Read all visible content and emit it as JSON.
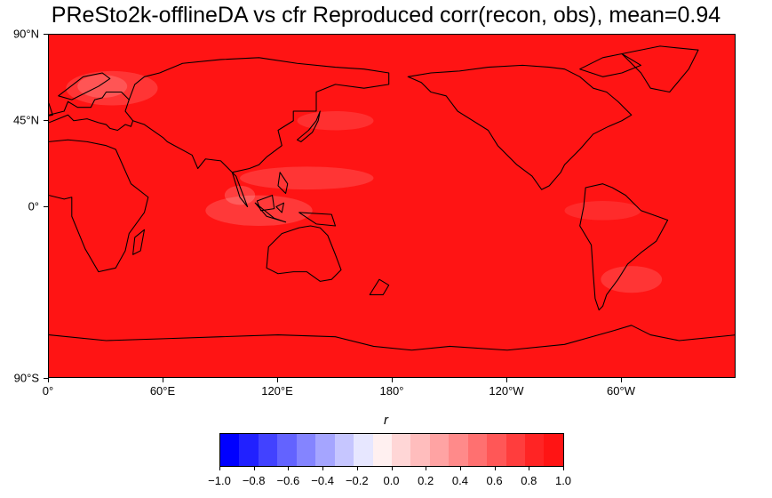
{
  "title": "PReSto2k-offlineDA vs cfr Reproduced corr(recon, obs), mean=0.94",
  "map": {
    "projection": "equirectangular",
    "central_longitude": 180,
    "background_color": "#ff1414",
    "coastline_color": "#000000",
    "lat_ticks": [
      {
        "label": "90°N",
        "lat": 90
      },
      {
        "label": "45°N",
        "lat": 45
      },
      {
        "label": "0°",
        "lat": 0
      },
      {
        "label": "90°S",
        "lat": -90
      }
    ],
    "lon_ticks": [
      {
        "label": "0°",
        "lon": 0
      },
      {
        "label": "60°E",
        "lon": 60
      },
      {
        "label": "120°E",
        "lon": 120
      },
      {
        "label": "180°",
        "lon": 180
      },
      {
        "label": "120°W",
        "lon": 240
      },
      {
        "label": "60°W",
        "lon": 300
      }
    ]
  },
  "colorbar": {
    "label": "r",
    "range": [
      -1.0,
      1.0
    ],
    "colors": [
      "#0000ff",
      "#2121ff",
      "#4242ff",
      "#6363ff",
      "#8484ff",
      "#a5a5ff",
      "#c6c6ff",
      "#e7e7ff",
      "#fff0f0",
      "#ffd6d6",
      "#ffbdbd",
      "#ffa3a3",
      "#ff8a8a",
      "#ff7070",
      "#ff5757",
      "#ff3d3d",
      "#ff2424",
      "#ff1414"
    ],
    "ticks": [
      "−1.0",
      "−0.8",
      "−0.6",
      "−0.4",
      "−0.2",
      "0.0",
      "0.2",
      "0.4",
      "0.6",
      "0.8",
      "1.0"
    ]
  }
}
